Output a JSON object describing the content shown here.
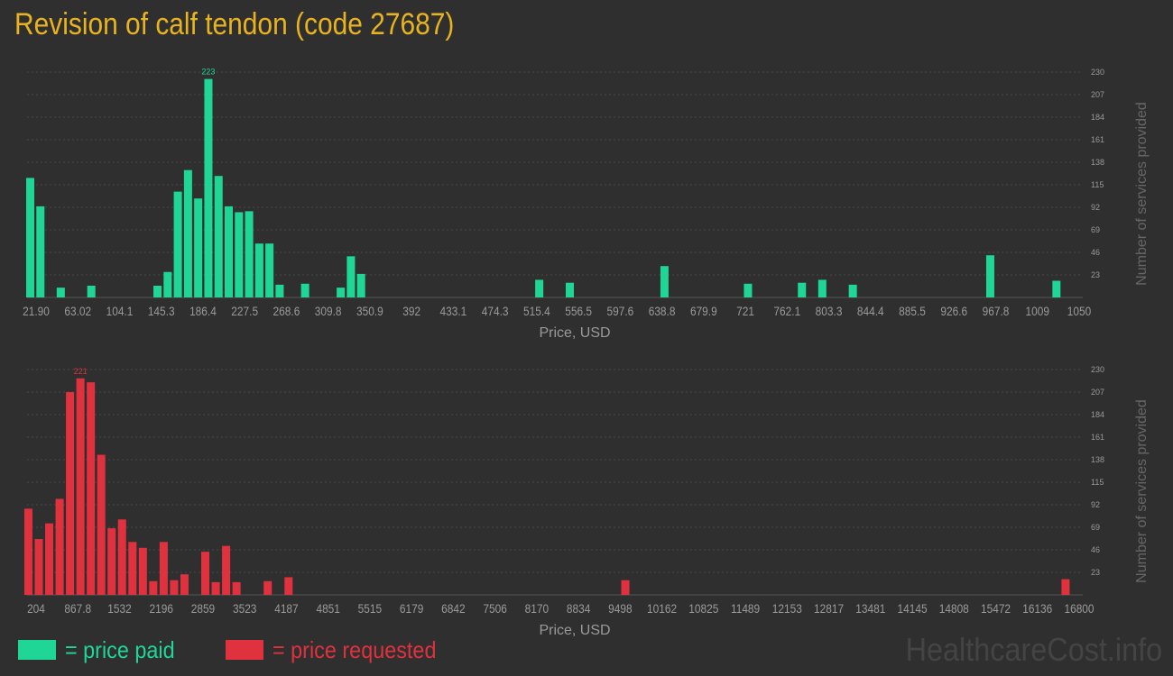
{
  "title": "Revision of calf tendon (code 27687)",
  "colors": {
    "paid": "#20d697",
    "requested": "#e0313f",
    "title": "#e8b320",
    "background": "#2f2f2f",
    "axis_text": "#9a9a9a",
    "grid": "#4a4a4a"
  },
  "legend": {
    "paid_label": "= price paid",
    "requested_label": "= price requested"
  },
  "watermark": "HealthcareCost.info",
  "chart_data": [
    {
      "type": "bar",
      "name": "price-paid",
      "xlabel": "Price, USD",
      "ylabel": "Number of services provided",
      "xlim": [
        21.9,
        1050
      ],
      "ylim": [
        0,
        230
      ],
      "x_ticks": [
        "21.90",
        "63.02",
        "104.1",
        "145.3",
        "186.4",
        "227.5",
        "268.6",
        "309.8",
        "350.9",
        "392",
        "433.1",
        "474.3",
        "515.4",
        "556.5",
        "597.6",
        "638.8",
        "679.9",
        "721",
        "762.1",
        "803.3",
        "844.4",
        "885.5",
        "926.6",
        "967.8",
        "1009",
        "1050"
      ],
      "y_ticks": [
        23,
        46,
        69,
        92,
        115,
        138,
        161,
        184,
        207,
        230
      ],
      "peak_label": "223",
      "bars": [
        {
          "x": 25,
          "y": 122
        },
        {
          "x": 35,
          "y": 93
        },
        {
          "x": 55,
          "y": 10
        },
        {
          "x": 85,
          "y": 12
        },
        {
          "x": 150,
          "y": 12
        },
        {
          "x": 160,
          "y": 26
        },
        {
          "x": 170,
          "y": 108
        },
        {
          "x": 180,
          "y": 130
        },
        {
          "x": 190,
          "y": 101
        },
        {
          "x": 200,
          "y": 223
        },
        {
          "x": 210,
          "y": 124
        },
        {
          "x": 220,
          "y": 93
        },
        {
          "x": 230,
          "y": 87
        },
        {
          "x": 240,
          "y": 88
        },
        {
          "x": 250,
          "y": 55
        },
        {
          "x": 260,
          "y": 55
        },
        {
          "x": 270,
          "y": 13
        },
        {
          "x": 295,
          "y": 14
        },
        {
          "x": 330,
          "y": 10
        },
        {
          "x": 340,
          "y": 42
        },
        {
          "x": 350,
          "y": 24
        },
        {
          "x": 525,
          "y": 18
        },
        {
          "x": 555,
          "y": 15
        },
        {
          "x": 648,
          "y": 32
        },
        {
          "x": 730,
          "y": 14
        },
        {
          "x": 783,
          "y": 15
        },
        {
          "x": 803,
          "y": 18
        },
        {
          "x": 833,
          "y": 13
        },
        {
          "x": 968,
          "y": 43
        },
        {
          "x": 1033,
          "y": 17
        }
      ]
    },
    {
      "type": "bar",
      "name": "price-requested",
      "xlabel": "Price, USD",
      "ylabel": "Number of services provided",
      "xlim": [
        204,
        16800
      ],
      "ylim": [
        0,
        230
      ],
      "x_ticks": [
        "204",
        "867.8",
        "1532",
        "2196",
        "2859",
        "3523",
        "4187",
        "4851",
        "5515",
        "6179",
        "6842",
        "7506",
        "8170",
        "8834",
        "9498",
        "10162",
        "10825",
        "11489",
        "12153",
        "12817",
        "13481",
        "14145",
        "14808",
        "15472",
        "16136",
        "16800"
      ],
      "y_ticks": [
        23,
        46,
        69,
        92,
        115,
        138,
        161,
        184,
        207,
        230
      ],
      "peak_label": "221",
      "bars": [
        {
          "x": 225,
          "y": 88
        },
        {
          "x": 390,
          "y": 57
        },
        {
          "x": 555,
          "y": 73
        },
        {
          "x": 720,
          "y": 98
        },
        {
          "x": 885,
          "y": 207
        },
        {
          "x": 1050,
          "y": 221
        },
        {
          "x": 1215,
          "y": 217
        },
        {
          "x": 1380,
          "y": 143
        },
        {
          "x": 1545,
          "y": 68
        },
        {
          "x": 1710,
          "y": 77
        },
        {
          "x": 1875,
          "y": 54
        },
        {
          "x": 2040,
          "y": 48
        },
        {
          "x": 2205,
          "y": 14
        },
        {
          "x": 2370,
          "y": 54
        },
        {
          "x": 2535,
          "y": 15
        },
        {
          "x": 2700,
          "y": 21
        },
        {
          "x": 3030,
          "y": 44
        },
        {
          "x": 3195,
          "y": 13
        },
        {
          "x": 3360,
          "y": 50
        },
        {
          "x": 3525,
          "y": 13
        },
        {
          "x": 4020,
          "y": 14
        },
        {
          "x": 4350,
          "y": 18
        },
        {
          "x": 9690,
          "y": 15
        },
        {
          "x": 16670,
          "y": 16
        }
      ]
    }
  ]
}
